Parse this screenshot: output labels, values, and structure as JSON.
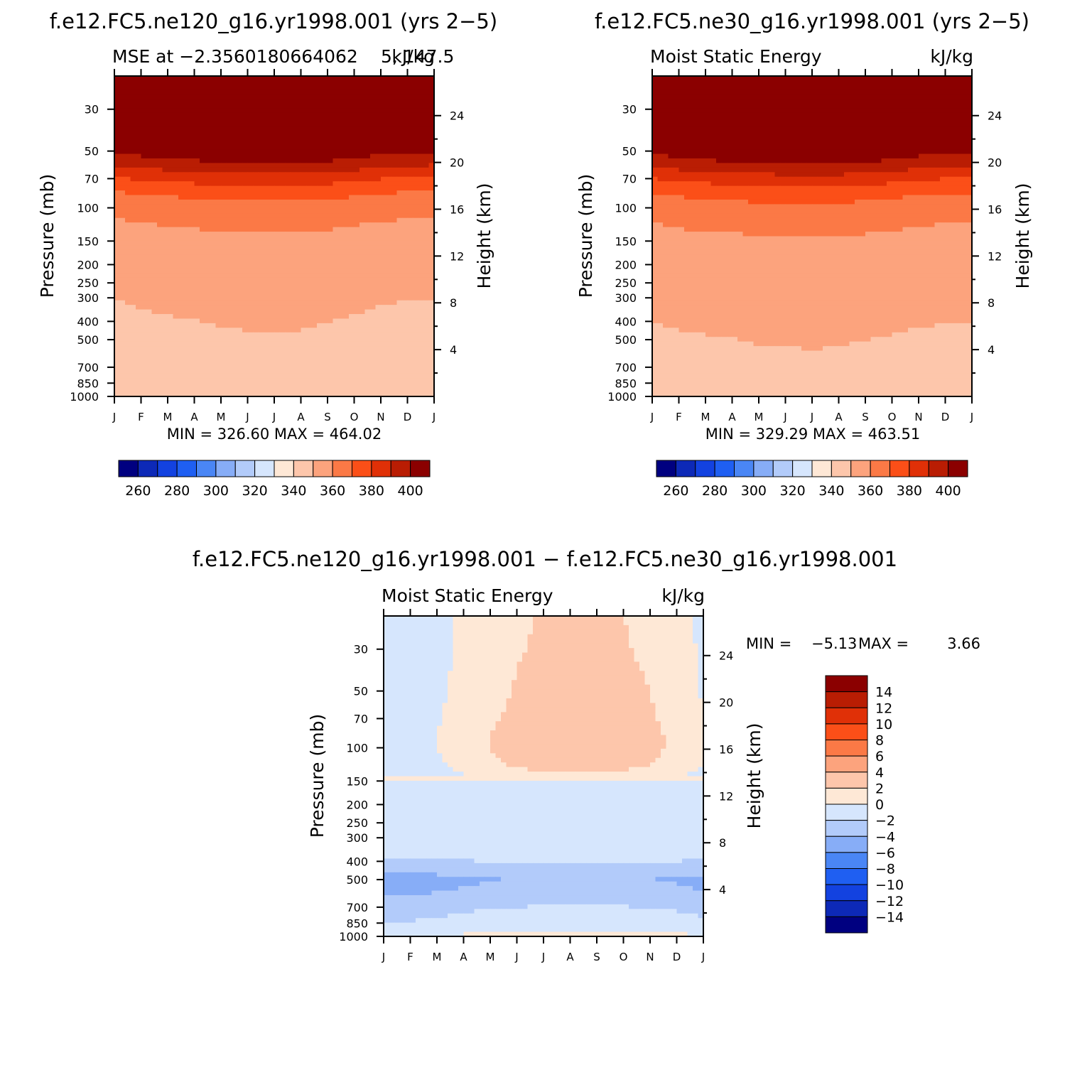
{
  "chart_data": [
    {
      "type": "heatmap",
      "title": "f.e12.FC5.ne120_g16.yr1998.001 (yrs 2−5)",
      "subtitle_left": "MSE at −2.3560180664062",
      "subtitle_right": "kJ/kg",
      "subtitle_overlap": "5, 147.5",
      "ylabel": "Pressure (mb)",
      "ylabel_right": "Height (km)",
      "x_ticks": [
        "J",
        "F",
        "M",
        "A",
        "M",
        "J",
        "J",
        "A",
        "S",
        "O",
        "N",
        "D",
        "J"
      ],
      "pressure_ticks": [
        "30",
        "50",
        "70",
        "100",
        "150",
        "200",
        "250",
        "300",
        "400",
        "500",
        "700",
        "850",
        "1000"
      ],
      "height_ticks": [
        "4",
        "8",
        "12",
        "16",
        "20",
        "24"
      ],
      "min_max": "MIN = 326.60 MAX = 464.02",
      "colorbar_labels": [
        "260",
        "280",
        "300",
        "320",
        "340",
        "360",
        "380",
        "400"
      ],
      "contour_levels": [
        250,
        260,
        270,
        280,
        290,
        300,
        310,
        320,
        330,
        340,
        350,
        360,
        370,
        380,
        390,
        400
      ],
      "ylim_mb": [
        1000,
        20
      ],
      "field_base": [
        [
          1000,
          331
        ],
        [
          925,
          335
        ],
        [
          850,
          336.5
        ],
        [
          700,
          337.5
        ],
        [
          600,
          338
        ],
        [
          500,
          339
        ],
        [
          400,
          339.5
        ],
        [
          300,
          340.5
        ],
        [
          250,
          342.5
        ],
        [
          200,
          345
        ],
        [
          150,
          347.5
        ],
        [
          120,
          350
        ],
        [
          100,
          354
        ],
        [
          85,
          360
        ],
        [
          75,
          367
        ],
        [
          68,
          373
        ],
        [
          62,
          380
        ],
        [
          56,
          387
        ],
        [
          50,
          394
        ],
        [
          45,
          402
        ],
        [
          30,
          425
        ],
        [
          20,
          445
        ]
      ],
      "field_seasonal_shift": [
        -3,
        0,
        1.5,
        3,
        4.5,
        5,
        5.5,
        5,
        3.5,
        1.5,
        -1,
        -2.5,
        -3
      ],
      "colors": [
        "#000080",
        "#0d29b7",
        "#1342e0",
        "#1f5ff2",
        "#4a86f5",
        "#87adf7",
        "#b2cbfa",
        "#d6e6fd",
        "#fee8d6",
        "#fdc6ab",
        "#fca37d",
        "#fb7946",
        "#fb4f18",
        "#e03007",
        "#b91d03",
        "#8b0000"
      ]
    },
    {
      "type": "heatmap",
      "title": "f.e12.FC5.ne30_g16.yr1998.001 (yrs 2−5)",
      "subtitle_left": "Moist Static Energy",
      "subtitle_right": "kJ/kg",
      "ylabel": "Pressure (mb)",
      "ylabel_right": "Height (km)",
      "x_ticks": [
        "J",
        "F",
        "M",
        "A",
        "M",
        "J",
        "J",
        "A",
        "S",
        "O",
        "N",
        "D",
        "J"
      ],
      "pressure_ticks": [
        "30",
        "50",
        "70",
        "100",
        "150",
        "200",
        "250",
        "300",
        "400",
        "500",
        "700",
        "850",
        "1000"
      ],
      "height_ticks": [
        "4",
        "8",
        "12",
        "16",
        "20",
        "24"
      ],
      "min_max": "MIN = 329.29 MAX = 463.51",
      "colorbar_labels": [
        "260",
        "280",
        "300",
        "320",
        "340",
        "360",
        "380",
        "400"
      ],
      "contour_levels": [
        250,
        260,
        270,
        280,
        290,
        300,
        310,
        320,
        330,
        340,
        350,
        360,
        370,
        380,
        390,
        400
      ],
      "ylim_mb": [
        1000,
        20
      ],
      "field_base": [
        [
          1000,
          331.5
        ],
        [
          925,
          335.5
        ],
        [
          850,
          337
        ],
        [
          700,
          338.5
        ],
        [
          600,
          339
        ],
        [
          500,
          339.5
        ],
        [
          400,
          340.5
        ],
        [
          300,
          341.5
        ],
        [
          250,
          343
        ],
        [
          200,
          345.5
        ],
        [
          150,
          348
        ],
        [
          120,
          351
        ],
        [
          100,
          355
        ],
        [
          85,
          361
        ],
        [
          75,
          368
        ],
        [
          68,
          374
        ],
        [
          62,
          381
        ],
        [
          56,
          388
        ],
        [
          50,
          395
        ],
        [
          45,
          403
        ],
        [
          30,
          425
        ],
        [
          20,
          445
        ]
      ],
      "field_seasonal_shift": [
        -3,
        0,
        1.5,
        3,
        4.5,
        5,
        5.5,
        5,
        3.5,
        1.5,
        -1,
        -2.5,
        -3
      ],
      "colors": [
        "#000080",
        "#0d29b7",
        "#1342e0",
        "#1f5ff2",
        "#4a86f5",
        "#87adf7",
        "#b2cbfa",
        "#d6e6fd",
        "#fee8d6",
        "#fdc6ab",
        "#fca37d",
        "#fb7946",
        "#fb4f18",
        "#e03007",
        "#b91d03",
        "#8b0000"
      ]
    },
    {
      "type": "heatmap",
      "title": "f.e12.FC5.ne120_g16.yr1998.001 − f.e12.FC5.ne30_g16.yr1998.001",
      "subtitle_left": "Moist Static Energy",
      "subtitle_right": "kJ/kg",
      "ylabel": "Pressure (mb)",
      "ylabel_right": "Height (km)",
      "x_ticks": [
        "J",
        "F",
        "M",
        "A",
        "M",
        "J",
        "J",
        "A",
        "S",
        "O",
        "N",
        "D",
        "J"
      ],
      "pressure_ticks": [
        "30",
        "50",
        "70",
        "100",
        "150",
        "200",
        "250",
        "300",
        "400",
        "500",
        "700",
        "850",
        "1000"
      ],
      "height_ticks": [
        "4",
        "8",
        "12",
        "16",
        "20",
        "24"
      ],
      "min_label": "MIN =",
      "min_value": "−5.13",
      "max_label": "MAX =",
      "max_value": "3.66",
      "colorbar_labels": [
        "14",
        "12",
        "10",
        "8",
        "6",
        "4",
        "2",
        "0",
        "−2",
        "−4",
        "−6",
        "−8",
        "−10",
        "−12",
        "−14"
      ],
      "contour_levels": [
        -14,
        -12,
        -10,
        -8,
        -6,
        -4,
        -2,
        0,
        2,
        4,
        6,
        8,
        10,
        12,
        14
      ],
      "ylim_mb": [
        1000,
        20
      ],
      "field_base": [
        [
          1000,
          0.6
        ],
        [
          925,
          -0.6
        ],
        [
          850,
          -1.3
        ],
        [
          700,
          -2.2
        ],
        [
          600,
          -3.5
        ],
        [
          500,
          -4.2
        ],
        [
          450,
          -3.2
        ],
        [
          400,
          -2.0
        ],
        [
          300,
          -1.0
        ],
        [
          200,
          -0.6
        ],
        [
          150,
          -0.1
        ],
        [
          140,
          0.6
        ],
        [
          120,
          1.4
        ],
        [
          100,
          1.6
        ],
        [
          85,
          1.6
        ],
        [
          70,
          1.4
        ],
        [
          50,
          1.2
        ],
        [
          30,
          1.0
        ],
        [
          20,
          0.9
        ]
      ],
      "field_seasonal_shift": [
        -2.6,
        -2.3,
        -1.6,
        -0.6,
        0.4,
        0.9,
        1.2,
        1.3,
        1.3,
        1.1,
        0.8,
        0.0,
        -1.4
      ],
      "colors": [
        "#000080",
        "#0d29b7",
        "#1342e0",
        "#1f5ff2",
        "#4a86f5",
        "#87adf7",
        "#b2cbfa",
        "#d6e6fd",
        "#fee8d6",
        "#fdc6ab",
        "#fca37d",
        "#fb7946",
        "#fb4f18",
        "#e03007",
        "#b91d03",
        "#8b0000"
      ]
    }
  ]
}
